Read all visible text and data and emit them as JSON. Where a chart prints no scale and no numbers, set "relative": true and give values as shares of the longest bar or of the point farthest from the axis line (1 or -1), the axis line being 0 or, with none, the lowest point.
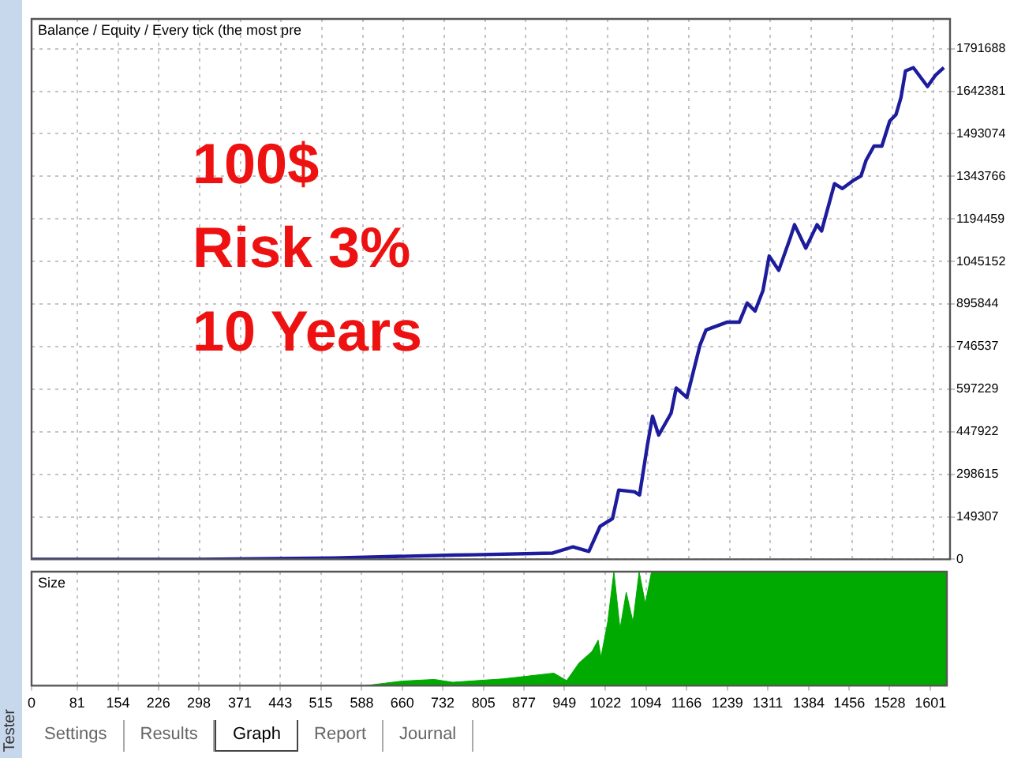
{
  "chart_data": [
    {
      "type": "line",
      "title": "Balance / Equity / Every tick (the most pre",
      "annotations": [
        "100$",
        "Risk 3%",
        "10 Years"
      ],
      "xlim": [
        0,
        1630
      ],
      "xticks": [
        0,
        81,
        154,
        226,
        298,
        371,
        443,
        515,
        588,
        660,
        732,
        805,
        877,
        949,
        1022,
        1094,
        1166,
        1239,
        1311,
        1384,
        1456,
        1528,
        1601
      ],
      "ylim": [
        0,
        1896000
      ],
      "yticks": [
        0,
        149307,
        298615,
        447922,
        597229,
        746537,
        895844,
        1045152,
        1194459,
        1343766,
        1493074,
        1642381,
        1791688
      ],
      "tick_labels": "y",
      "grid": true,
      "marker": "none",
      "line_style": "solid",
      "legend": false,
      "series": [
        {
          "color": "#1c1c9c",
          "x": [
            0,
            300,
            537,
            750,
            784,
            925,
            961,
            989,
            1009,
            1031,
            1042,
            1070,
            1079,
            1093,
            1102,
            1113,
            1135,
            1144,
            1163,
            1186,
            1197,
            1234,
            1256,
            1270,
            1284,
            1298,
            1309,
            1326,
            1346,
            1354,
            1374,
            1394,
            1402,
            1425,
            1439,
            1458,
            1472,
            1481,
            1495,
            1509,
            1523,
            1534,
            1543,
            1551,
            1565,
            1590,
            1604,
            1619
          ],
          "values": [
            0,
            0,
            5000,
            15000,
            16000,
            22000,
            44000,
            28000,
            116000,
            143000,
            243000,
            237000,
            226000,
            402000,
            502000,
            436000,
            513000,
            601000,
            568000,
            750000,
            805000,
            832000,
            832000,
            899000,
            871000,
            943000,
            1064000,
            1014000,
            1125000,
            1174000,
            1092000,
            1174000,
            1152000,
            1318000,
            1301000,
            1329000,
            1345000,
            1400000,
            1450000,
            1450000,
            1538000,
            1560000,
            1621000,
            1714000,
            1725000,
            1659000,
            1698000,
            1725000
          ]
        }
      ]
    },
    {
      "type": "area",
      "title": "Size",
      "relative": true,
      "annotations": [
        "Settings",
        "Results",
        "Graph",
        "Report",
        "Journal",
        "Tester"
      ],
      "xlim": [
        0,
        1630
      ],
      "xticks": [
        0,
        81,
        154,
        226,
        298,
        371,
        443,
        515,
        588,
        660,
        732,
        805,
        877,
        949,
        1022,
        1094,
        1166,
        1239,
        1311,
        1384,
        1456,
        1528,
        1601
      ],
      "tick_labels": "x",
      "grid": "x",
      "marker": "none",
      "legend": false,
      "series": [
        {
          "color": "#00aa00",
          "x": [
            0,
            593,
            660,
            717,
            750,
            840,
            930,
            953,
            975,
            998,
            1009,
            1014,
            1026,
            1037,
            1048,
            1059,
            1071,
            1082,
            1093,
            1104,
            1630
          ],
          "values": [
            0,
            0,
            0.04,
            0.055,
            0.03,
            0.06,
            0.11,
            0.045,
            0.2,
            0.3,
            0.4,
            0.25,
            0.56,
            1,
            0.5,
            0.82,
            0.56,
            1,
            0.72,
            1,
            1
          ]
        }
      ]
    }
  ]
}
